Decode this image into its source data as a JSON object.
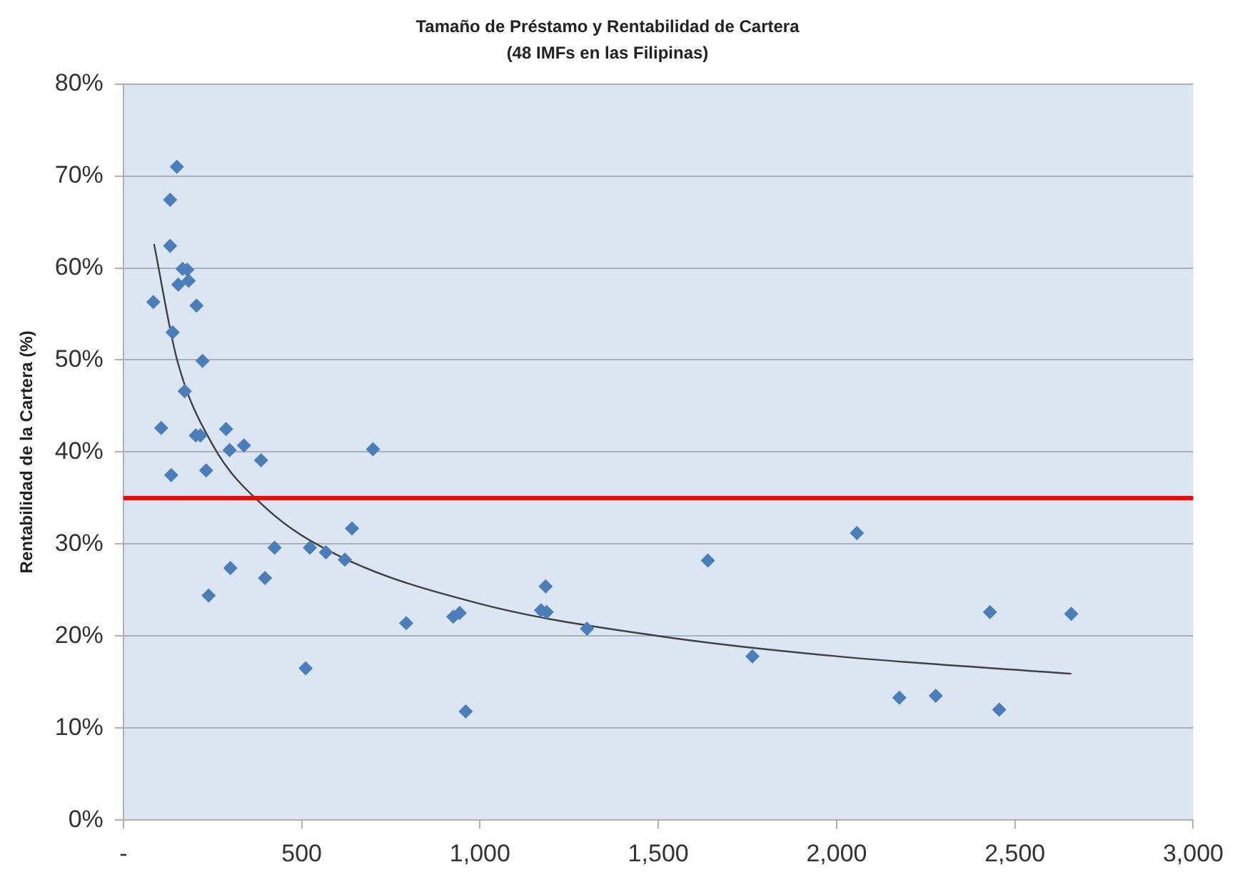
{
  "chart_data": {
    "type": "scatter",
    "title": "Tamaño de Préstamo y Rentabilidad de Cartera",
    "subtitle": "(48 IMFs en las Filipinas)",
    "ylabel": "Rentabilidad de la Cartera (%)",
    "xlim": [
      0,
      3000
    ],
    "xticks": [
      {
        "value": 0,
        "label": "-"
      },
      500,
      {
        "value": 1000,
        "label": "1,000"
      },
      {
        "value": 1500,
        "label": "1,500"
      },
      {
        "value": 2000,
        "label": "2,000"
      },
      {
        "value": 2500,
        "label": "2,500"
      },
      {
        "value": 3000,
        "label": "3,000"
      }
    ],
    "ylim": [
      0,
      80
    ],
    "yticks": [
      {
        "value": 0,
        "label": "0%"
      },
      {
        "value": 10,
        "label": "10%"
      },
      {
        "value": 20,
        "label": "20%"
      },
      {
        "value": 30,
        "label": "30%"
      },
      {
        "value": 40,
        "label": "40%"
      },
      {
        "value": 50,
        "label": "50%"
      },
      {
        "value": 60,
        "label": "60%"
      },
      {
        "value": 70,
        "label": "70%"
      },
      {
        "value": 80,
        "label": "80%"
      }
    ],
    "grid": "y",
    "legend": false,
    "marker": "diamond",
    "series": [
      {
        "type": "scatter",
        "color": "#4a7ebb",
        "x": [
          150,
          131,
          131,
          166,
          179,
          154,
          183,
          84,
          205,
          138,
          222,
          172,
          106,
          203,
          216,
          288,
          298,
          338,
          386,
          700,
          134,
          232,
          641,
          424,
          523,
          568,
          621,
          300,
          397,
          239,
          793,
          925,
          943,
          511,
          1184,
          1171,
          1187,
          1300,
          1639,
          1764,
          2057,
          960,
          2430,
          2658,
          2176,
          2278,
          2456
        ],
        "values": [
          71.0,
          67.4,
          62.4,
          59.9,
          59.8,
          58.2,
          58.6,
          56.3,
          55.9,
          53.0,
          49.9,
          46.6,
          42.6,
          41.8,
          41.8,
          42.5,
          40.2,
          40.7,
          39.1,
          40.3,
          37.5,
          38.0,
          31.7,
          29.6,
          29.6,
          29.1,
          28.3,
          27.4,
          26.3,
          24.4,
          21.4,
          22.1,
          22.5,
          16.5,
          25.4,
          22.8,
          22.6,
          20.8,
          28.2,
          17.8,
          31.2,
          11.8,
          22.6,
          22.4,
          13.3,
          13.5,
          12.0
        ]
      },
      {
        "type": "line",
        "color": "#404040",
        "marker": "none",
        "x": [
          86,
          150,
          250,
          400,
          600,
          1000,
          1500,
          2000,
          2658
        ],
        "values": [
          62.6,
          50.1,
          40.8,
          33.9,
          28.8,
          23.5,
          20.0,
          17.8,
          15.9
        ]
      }
    ],
    "ref_lines": [
      {
        "axis": "y",
        "value": 35,
        "color": "#ff0000"
      }
    ]
  }
}
